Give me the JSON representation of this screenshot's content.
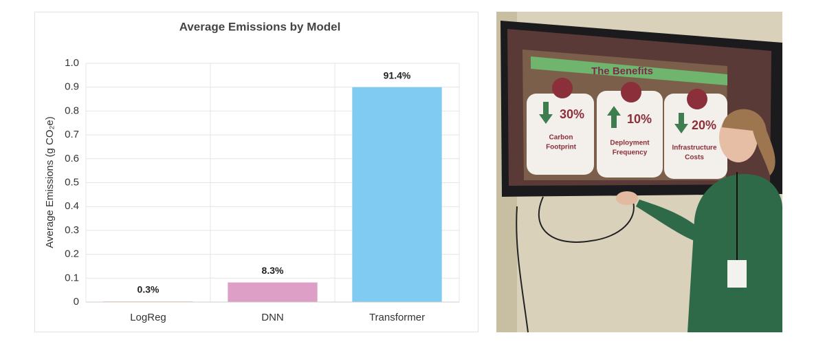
{
  "chart_data": {
    "type": "bar",
    "title": "Average Emissions by Model",
    "y_label": "Average Emissions (g CO₂e)",
    "categories": [
      "LogReg",
      "DNN",
      "Transformer"
    ],
    "values": [
      0.003,
      0.082,
      0.9
    ],
    "annotations": [
      "0.3%",
      "8.3%",
      "91.4%"
    ],
    "colors": [
      "#f6caa9",
      "#de9fc6",
      "#7fcbf1"
    ],
    "ylim": [
      0,
      1
    ],
    "yticks": [
      0,
      0.1,
      0.2,
      0.3,
      0.4,
      0.5,
      0.6,
      0.7,
      0.8,
      0.9,
      {
        "value": 1,
        "label": "1.0"
      }
    ],
    "grid": true
  },
  "photo": {
    "slide_title": "The Benefits",
    "cards": [
      {
        "value": "30%",
        "lines": [
          "Carbon",
          "Footprint"
        ]
      },
      {
        "value": "10%",
        "lines": [
          "Deployment",
          "Frequency"
        ]
      },
      {
        "value": "20%",
        "lines": [
          "Infrastructure",
          "Costs"
        ]
      }
    ]
  }
}
